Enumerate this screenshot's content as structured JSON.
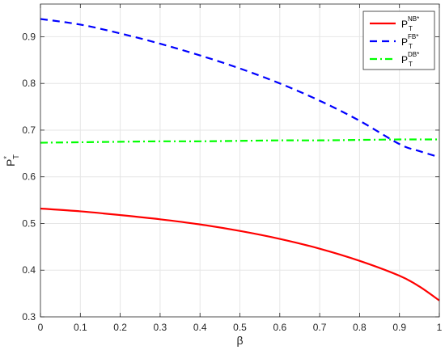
{
  "chart_data": {
    "type": "line",
    "xlabel": "β",
    "ylabel": {
      "base": "P",
      "sup": "*",
      "sub": "T"
    },
    "xlim": [
      0,
      1
    ],
    "ylim": [
      0.3,
      0.97
    ],
    "x_ticks": [
      0,
      0.1,
      0.2,
      0.3,
      0.4,
      0.5,
      0.6,
      0.7,
      0.8,
      0.9,
      1
    ],
    "x_tick_labels": [
      "0",
      "0.1",
      "0.2",
      "0.3",
      "0.4",
      "0.5",
      "0.6",
      "0.7",
      "0.8",
      "0.9",
      "1"
    ],
    "y_ticks": [
      0.3,
      0.4,
      0.5,
      0.6,
      0.7,
      0.8,
      0.9
    ],
    "y_tick_labels": [
      "0.3",
      "0.4",
      "0.5",
      "0.6",
      "0.7",
      "0.8",
      "0.9"
    ],
    "grid": true,
    "legend_position": "top-right",
    "x": [
      0,
      0.1,
      0.2,
      0.3,
      0.4,
      0.5,
      0.6,
      0.7,
      0.8,
      0.9,
      0.95,
      1
    ],
    "series": [
      {
        "name": "NB",
        "legend": {
          "base": "P",
          "sub": "T",
          "sup": "NB*"
        },
        "color": "#ff0000",
        "dash": "solid",
        "values": [
          0.532,
          0.526,
          0.518,
          0.509,
          0.498,
          0.484,
          0.467,
          0.446,
          0.42,
          0.388,
          0.365,
          0.335
        ]
      },
      {
        "name": "FB",
        "legend": {
          "base": "P",
          "sub": "T",
          "sup": "FB*"
        },
        "color": "#0000ff",
        "dash": "dashed",
        "values": [
          0.938,
          0.926,
          0.907,
          0.885,
          0.86,
          0.832,
          0.8,
          0.763,
          0.72,
          0.67,
          0.655,
          0.642
        ]
      },
      {
        "name": "DB",
        "legend": {
          "base": "P",
          "sub": "T",
          "sup": "DB*"
        },
        "color": "#00ff00",
        "dash": "dashdot",
        "values": [
          0.673,
          0.674,
          0.675,
          0.676,
          0.676,
          0.677,
          0.678,
          0.678,
          0.679,
          0.68,
          0.68,
          0.68
        ]
      }
    ]
  }
}
